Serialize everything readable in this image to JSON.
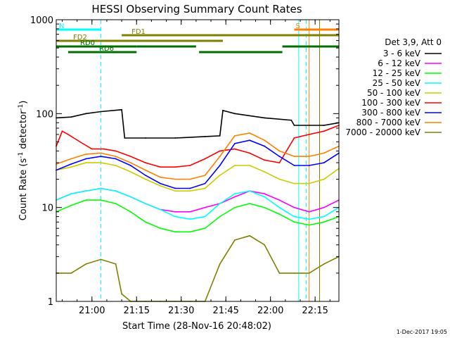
{
  "chart_data": {
    "type": "line",
    "title": "HESSI Observing Summary Count Rates",
    "xlabel": "Start Time (28-Nov-16 20:48:02)",
    "ylabel_main": "Count Rate (s",
    "ylabel_sup1": "-1",
    "ylabel_mid": " detector",
    "ylabel_sup2": "-1",
    "ylabel_end": ")",
    "footer": "1-Dec-2017 19:05",
    "x_unit": "minutes since 20:48:02",
    "xlim": [
      0,
      95
    ],
    "ylim": [
      1,
      1000
    ],
    "y_scale": "log",
    "x_ticks": [
      {
        "value": 12,
        "label": "21:00"
      },
      {
        "value": 27,
        "label": "21:15"
      },
      {
        "value": 42,
        "label": "21:30"
      },
      {
        "value": 57,
        "label": "21:45"
      },
      {
        "value": 72,
        "label": "22:00"
      },
      {
        "value": 87,
        "label": "22:15"
      }
    ],
    "y_ticks": [
      {
        "value": 1,
        "label": "1"
      },
      {
        "value": 10,
        "label": "10"
      },
      {
        "value": 100,
        "label": "100"
      },
      {
        "value": 1000,
        "label": "1000"
      }
    ],
    "legend_header": "Det 3,9, Att 0",
    "legend_position": "right",
    "series": [
      {
        "name": "3 - 6 keV",
        "color": "#000000",
        "x": [
          0,
          5,
          10,
          15,
          22,
          23,
          30,
          40,
          50,
          55,
          56,
          60,
          70,
          79,
          80,
          90,
          95
        ],
        "y": [
          90,
          92,
          100,
          105,
          110,
          55,
          55,
          55,
          57,
          58,
          108,
          100,
          90,
          85,
          75,
          75,
          80
        ]
      },
      {
        "name": "6 - 12 keV",
        "color": "#ff00ff",
        "x": [
          0,
          5,
          10,
          15,
          20,
          25,
          30,
          35,
          40,
          45,
          50,
          55,
          60,
          65,
          70,
          75,
          80,
          85,
          90,
          95
        ],
        "y": [
          12,
          14,
          15,
          16,
          15,
          13,
          11,
          9.5,
          9,
          9,
          10,
          11,
          13,
          15,
          14,
          12,
          10,
          9,
          10,
          12
        ]
      },
      {
        "name": "12 - 25 keV",
        "color": "#00ff00",
        "x": [
          0,
          5,
          10,
          15,
          20,
          25,
          30,
          35,
          40,
          45,
          50,
          55,
          60,
          65,
          70,
          75,
          80,
          85,
          90,
          95
        ],
        "y": [
          9,
          10.5,
          12,
          12,
          11,
          9,
          7,
          6,
          5.5,
          5.5,
          6,
          8,
          10,
          11,
          10,
          8.5,
          7,
          6.5,
          7,
          8
        ]
      },
      {
        "name": "25 - 50 keV",
        "color": "#00ffff",
        "x": [
          0,
          5,
          10,
          15,
          20,
          25,
          30,
          35,
          40,
          45,
          50,
          55,
          60,
          65,
          70,
          75,
          80,
          85,
          90,
          95
        ],
        "y": [
          12,
          14,
          15,
          16,
          15,
          13,
          11,
          9.5,
          8,
          7.5,
          8,
          11,
          14,
          15,
          13,
          10,
          8,
          7.5,
          8,
          10
        ]
      },
      {
        "name": "50 - 100 keV",
        "color": "#cccc00",
        "x": [
          0,
          5,
          10,
          15,
          20,
          25,
          30,
          35,
          40,
          45,
          50,
          55,
          60,
          65,
          70,
          75,
          80,
          85,
          90,
          95
        ],
        "y": [
          25,
          27,
          30,
          30,
          28,
          24,
          20,
          17,
          15,
          15,
          16,
          22,
          28,
          28,
          24,
          20,
          18,
          18,
          20,
          26
        ]
      },
      {
        "name": "100 - 300 keV",
        "color": "#ff0000",
        "x": [
          0,
          2,
          4,
          8,
          12,
          16,
          20,
          25,
          30,
          35,
          40,
          45,
          50,
          55,
          60,
          65,
          70,
          75,
          80,
          85,
          90,
          95
        ],
        "y": [
          45,
          65,
          60,
          50,
          42,
          42,
          40,
          35,
          30,
          27,
          27,
          28,
          33,
          40,
          42,
          38,
          32,
          30,
          55,
          60,
          65,
          75
        ]
      },
      {
        "name": "300 - 800 keV",
        "color": "#0000ff",
        "x": [
          0,
          5,
          10,
          15,
          20,
          25,
          30,
          35,
          40,
          45,
          50,
          55,
          60,
          65,
          70,
          75,
          80,
          85,
          90,
          95
        ],
        "y": [
          25,
          29,
          33,
          35,
          33,
          28,
          22,
          18,
          16,
          16,
          18,
          28,
          48,
          52,
          45,
          35,
          28,
          28,
          30,
          38
        ]
      },
      {
        "name": "800 - 7000 keV",
        "color": "#ff8000",
        "x": [
          0,
          5,
          10,
          15,
          20,
          25,
          30,
          35,
          40,
          45,
          50,
          55,
          60,
          65,
          70,
          75,
          80,
          85,
          90,
          95
        ],
        "y": [
          29,
          33,
          37,
          38,
          35,
          30,
          25,
          21,
          20,
          20,
          22,
          35,
          58,
          62,
          52,
          40,
          35,
          35,
          38,
          45
        ]
      },
      {
        "name": "7000 - 20000 keV",
        "color": "#808000",
        "x": [
          0,
          5,
          10,
          15,
          20,
          22,
          25,
          30,
          35,
          40,
          45,
          50,
          55,
          60,
          65,
          70,
          75,
          80,
          85,
          90,
          95
        ],
        "y": [
          2,
          2,
          2.5,
          2.8,
          2.5,
          1.2,
          1,
          1,
          1,
          1,
          1,
          1,
          2.5,
          4.5,
          5,
          4,
          2,
          2,
          2,
          2.5,
          3
        ]
      }
    ],
    "state_bars": [
      {
        "label": "N",
        "color": "#00ffff",
        "row": 1,
        "spans": [
          [
            0,
            15
          ]
        ]
      },
      {
        "label": "FD1",
        "color": "#808000",
        "row": 2,
        "spans": [
          [
            22,
            95
          ]
        ]
      },
      {
        "label": "FD2",
        "color": "#808000",
        "row": 3,
        "spans": [
          [
            0,
            56
          ]
        ]
      },
      {
        "label": "RD0",
        "color": "#007000",
        "row": 4,
        "spans": [
          [
            0,
            27
          ],
          [
            27,
            47
          ],
          [
            76,
            95
          ]
        ]
      },
      {
        "label": "RD6",
        "color": "#007000",
        "row": 5,
        "spans": [
          [
            4,
            27
          ],
          [
            48,
            76
          ]
        ]
      },
      {
        "label": "S",
        "color": "#ff8000",
        "row": 1,
        "spans": [
          [
            80,
            95
          ]
        ]
      }
    ],
    "vlines": [
      {
        "x": 0,
        "color": "#00ffff",
        "dashed": false
      },
      {
        "x": 15,
        "color": "#00ffff",
        "dashed": true
      },
      {
        "x": 81.5,
        "color": "#00ffff",
        "dashed": false
      },
      {
        "x": 84,
        "color": "#00ffff",
        "dashed": true
      },
      {
        "x": 85,
        "color": "#ff8000",
        "dashed": false
      },
      {
        "x": 88.5,
        "color": "#808000",
        "dashed": false
      },
      {
        "x": 95,
        "color": "#ff8000",
        "dashed": true
      }
    ]
  }
}
